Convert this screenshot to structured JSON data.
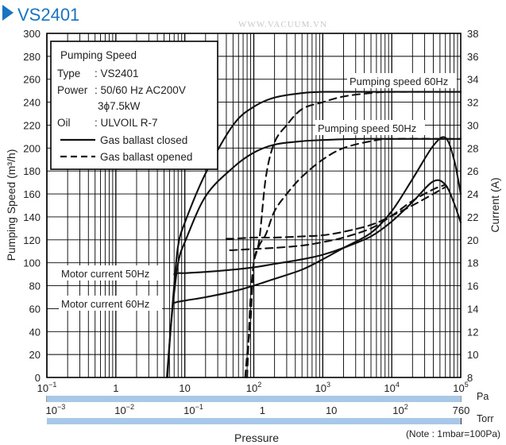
{
  "chart_data": {
    "type": "line",
    "title": "VS2401",
    "watermark": "WWW.VACUUM.VN",
    "xlabel": "Pressure",
    "ylabel_left": "Pumping Speed (m³/h)",
    "ylabel_right": "Current (A)",
    "x_scale": "log",
    "xlim_pa": [
      0.1,
      100000
    ],
    "ylim_left": [
      0,
      300
    ],
    "ylim_right": [
      8,
      38
    ],
    "grid": true,
    "x_ticks_pa": [
      {
        "base": "10",
        "exp": "−1"
      },
      {
        "base": "1",
        "exp": ""
      },
      {
        "base": "10",
        "exp": ""
      },
      {
        "base": "10",
        "exp": "2"
      },
      {
        "base": "10",
        "exp": "3"
      },
      {
        "base": "10",
        "exp": "4"
      },
      {
        "base": "10",
        "exp": "5"
      }
    ],
    "pa_unit": "Pa",
    "torr_ticks": [
      {
        "base": "10",
        "exp": "−3",
        "pa": 0.1333
      },
      {
        "base": "10",
        "exp": "−2",
        "pa": 1.333
      },
      {
        "base": "10",
        "exp": "−1",
        "pa": 13.33
      },
      {
        "base": "1",
        "exp": "",
        "pa": 133.3
      },
      {
        "base": "10",
        "exp": "",
        "pa": 1333
      },
      {
        "base": "10",
        "exp": "2",
        "pa": 13330
      },
      {
        "base": "760",
        "exp": "",
        "pa": 101325
      }
    ],
    "torr_unit": "Torr",
    "y_ticks_left": [
      "0",
      "20",
      "40",
      "60",
      "80",
      "100",
      "120",
      "140",
      "160",
      "180",
      "200",
      "220",
      "240",
      "260",
      "280",
      "300"
    ],
    "y_ticks_right": [
      "8",
      "10",
      "12",
      "14",
      "16",
      "18",
      "20",
      "22",
      "24",
      "26",
      "28",
      "30",
      "32",
      "34",
      "36",
      "38"
    ],
    "note": "(Note : 1mbar=100Pa)",
    "legend": {
      "title": "Pumping Speed",
      "rows": [
        {
          "key": "Type",
          "value": ": VS2401"
        },
        {
          "key": "Power",
          "value": ": 50/60 Hz AC200V"
        },
        {
          "key": "",
          "value": "3ϕ7.5kW"
        },
        {
          "key": "Oil",
          "value": ":  ULVOIL R-7"
        }
      ],
      "entries": [
        {
          "label": "Gas ballast closed",
          "style": "solid"
        },
        {
          "label": "Gas ballast opened",
          "style": "dashed"
        }
      ]
    },
    "annotations": [
      {
        "text": "Pumping speed 60Hz"
      },
      {
        "text": "Pumping speed 50Hz"
      },
      {
        "text": "Motor current 50Hz"
      },
      {
        "text": "Motor current 60Hz"
      }
    ],
    "series": [
      {
        "axis": "left",
        "style": "solid",
        "x": [
          5.5,
          6.0,
          7.0,
          8.0,
          10,
          20,
          50,
          100,
          200,
          500,
          1000,
          3000,
          10000,
          30000,
          100000
        ],
        "y": [
          0,
          30,
          80,
          115,
          135,
          178,
          220,
          236,
          244,
          248,
          249,
          249,
          249,
          249,
          249
        ]
      },
      {
        "axis": "left",
        "style": "solid",
        "x": [
          5.6,
          6.2,
          7.2,
          8.2,
          10,
          20,
          50,
          100,
          200,
          500,
          1000,
          3000,
          10000,
          30000,
          100000
        ],
        "y": [
          0,
          40,
          80,
          103,
          118,
          158,
          183,
          196,
          203,
          206,
          207,
          208,
          208,
          208,
          208
        ]
      },
      {
        "axis": "left",
        "style": "dashed",
        "x": [
          80,
          85,
          90,
          100,
          120,
          150,
          200,
          300,
          500,
          1000,
          2000,
          5000,
          10000,
          100000
        ],
        "y": [
          0,
          40,
          70,
          100,
          120,
          175,
          205,
          220,
          234,
          240,
          245,
          248,
          249,
          249
        ]
      },
      {
        "axis": "left",
        "style": "dashed",
        "x": [
          75,
          80,
          90,
          100,
          120,
          150,
          200,
          300,
          500,
          1000,
          2000,
          5000,
          10000,
          100000
        ],
        "y": [
          0,
          20,
          50,
          100,
          115,
          125,
          145,
          160,
          175,
          190,
          200,
          206,
          208,
          208
        ]
      },
      {
        "axis": "right",
        "style": "solid",
        "x": [
          7.0,
          8.0,
          10,
          20,
          50,
          100,
          200,
          500,
          1000,
          2000,
          5000,
          10000,
          20000,
          40000,
          60000,
          80000,
          100000
        ],
        "y": [
          17.0,
          17.1,
          17.1,
          17.2,
          17.4,
          17.6,
          17.9,
          18.3,
          18.7,
          19.3,
          20.3,
          21.6,
          23.3,
          25.1,
          24.8,
          23.2,
          21.5
        ]
      },
      {
        "axis": "right",
        "style": "solid",
        "x": [
          7.0,
          8.0,
          10,
          20,
          50,
          100,
          200,
          500,
          1000,
          2000,
          5000,
          10000,
          20000,
          40000,
          60000,
          80000,
          100000
        ],
        "y": [
          14.5,
          14.6,
          14.7,
          15.0,
          15.5,
          16.0,
          16.6,
          17.4,
          18.3,
          19.3,
          20.6,
          22.5,
          25.3,
          28.2,
          28.9,
          27.0,
          24.0
        ]
      },
      {
        "axis": "right",
        "style": "dashed",
        "x": [
          40,
          50,
          100,
          200,
          500,
          1000,
          2000,
          5000,
          10000,
          20000,
          40000,
          60000
        ],
        "y": [
          20.1,
          20.1,
          20.2,
          20.2,
          20.3,
          20.4,
          20.7,
          21.3,
          22.1,
          23.0,
          24.0,
          24.6
        ]
      },
      {
        "axis": "right",
        "style": "dashed",
        "x": [
          45,
          50,
          100,
          200,
          500,
          1000,
          2000,
          5000,
          10000,
          20000,
          40000,
          60000
        ],
        "y": [
          19.1,
          19.1,
          19.2,
          19.3,
          19.5,
          19.8,
          20.2,
          21.0,
          22.1,
          23.4,
          24.4,
          24.8
        ]
      }
    ]
  }
}
